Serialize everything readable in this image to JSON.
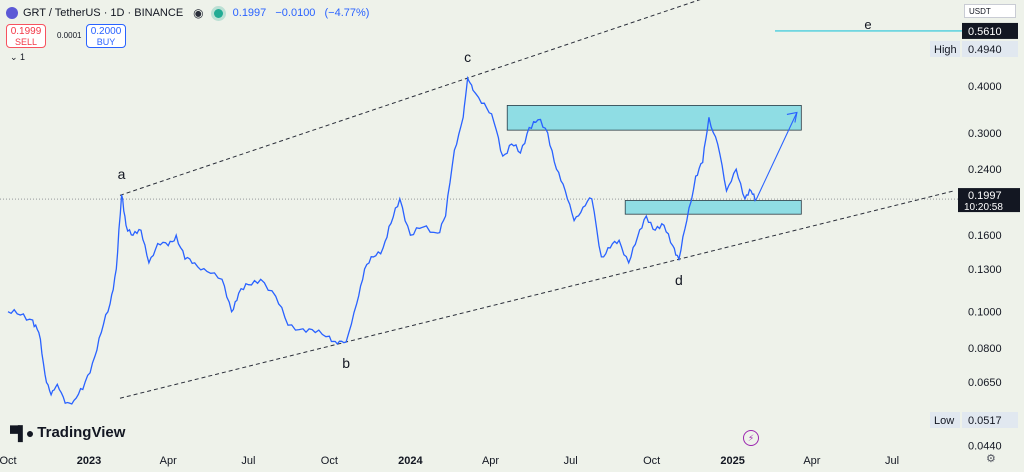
{
  "header": {
    "symbol": "GRT / TetherUS · 1D · BINANCE",
    "quote": {
      "last": "0.1997",
      "change": "−0.0100",
      "change_pct": "(−4.77%)"
    }
  },
  "trade": {
    "sell_price": "0.1999",
    "sell_label": "SELL",
    "spread": "0.0001",
    "buy_price": "0.2000",
    "buy_label": "BUY"
  },
  "indicator_toggle": "1",
  "currency": "USDT",
  "brand": "TradingView",
  "colors": {
    "line": "#2962ff",
    "zone_fill": "#8fdde4",
    "zone_edge": "#2a3b45",
    "e_line": "#26c6da",
    "price_tag": "#131722"
  },
  "chart_data": {
    "type": "line",
    "series": [
      {
        "name": "",
        "points": [
          [
            "2022-10-01",
            0.1
          ],
          [
            "2022-10-15",
            0.098
          ],
          [
            "2022-10-29",
            0.095
          ],
          [
            "2022-11-05",
            0.088
          ],
          [
            "2022-11-12",
            0.068
          ],
          [
            "2022-11-19",
            0.06
          ],
          [
            "2022-11-26",
            0.064
          ],
          [
            "2022-12-05",
            0.057
          ],
          [
            "2022-12-15",
            0.058
          ],
          [
            "2022-12-25",
            0.062
          ],
          [
            "2023-01-05",
            0.073
          ],
          [
            "2023-01-15",
            0.088
          ],
          [
            "2023-01-25",
            0.105
          ],
          [
            "2023-02-01",
            0.13
          ],
          [
            "2023-02-07",
            0.205
          ],
          [
            "2023-02-12",
            0.17
          ],
          [
            "2023-02-20",
            0.16
          ],
          [
            "2023-03-01",
            0.165
          ],
          [
            "2023-03-10",
            0.135
          ],
          [
            "2023-03-20",
            0.152
          ],
          [
            "2023-04-01",
            0.15
          ],
          [
            "2023-04-10",
            0.16
          ],
          [
            "2023-04-20",
            0.138
          ],
          [
            "2023-05-01",
            0.135
          ],
          [
            "2023-05-15",
            0.128
          ],
          [
            "2023-06-01",
            0.122
          ],
          [
            "2023-06-12",
            0.1
          ],
          [
            "2023-06-20",
            0.112
          ],
          [
            "2023-07-01",
            0.118
          ],
          [
            "2023-07-15",
            0.122
          ],
          [
            "2023-08-01",
            0.11
          ],
          [
            "2023-08-15",
            0.092
          ],
          [
            "2023-09-01",
            0.09
          ],
          [
            "2023-09-15",
            0.088
          ],
          [
            "2023-10-01",
            0.086
          ],
          [
            "2023-10-10",
            0.082
          ],
          [
            "2023-10-20",
            0.083
          ],
          [
            "2023-11-01",
            0.105
          ],
          [
            "2023-11-10",
            0.13
          ],
          [
            "2023-11-20",
            0.14
          ],
          [
            "2023-12-01",
            0.148
          ],
          [
            "2023-12-10",
            0.172
          ],
          [
            "2023-12-20",
            0.2
          ],
          [
            "2024-01-01",
            0.16
          ],
          [
            "2024-01-15",
            0.168
          ],
          [
            "2024-02-01",
            0.162
          ],
          [
            "2024-02-10",
            0.18
          ],
          [
            "2024-02-20",
            0.27
          ],
          [
            "2024-03-01",
            0.33
          ],
          [
            "2024-03-06",
            0.42
          ],
          [
            "2024-03-12",
            0.39
          ],
          [
            "2024-03-25",
            0.36
          ],
          [
            "2024-04-05",
            0.32
          ],
          [
            "2024-04-15",
            0.26
          ],
          [
            "2024-04-25",
            0.28
          ],
          [
            "2024-05-05",
            0.265
          ],
          [
            "2024-05-15",
            0.31
          ],
          [
            "2024-05-25",
            0.325
          ],
          [
            "2024-06-05",
            0.3
          ],
          [
            "2024-06-15",
            0.24
          ],
          [
            "2024-06-25",
            0.21
          ],
          [
            "2024-07-05",
            0.175
          ],
          [
            "2024-07-15",
            0.19
          ],
          [
            "2024-07-25",
            0.2
          ],
          [
            "2024-08-05",
            0.14
          ],
          [
            "2024-08-15",
            0.148
          ],
          [
            "2024-08-25",
            0.155
          ],
          [
            "2024-09-05",
            0.135
          ],
          [
            "2024-09-15",
            0.158
          ],
          [
            "2024-09-25",
            0.18
          ],
          [
            "2024-10-05",
            0.165
          ],
          [
            "2024-10-15",
            0.17
          ],
          [
            "2024-10-25",
            0.15
          ],
          [
            "2024-11-01",
            0.138
          ],
          [
            "2024-11-10",
            0.175
          ],
          [
            "2024-11-20",
            0.23
          ],
          [
            "2024-11-28",
            0.25
          ],
          [
            "2024-12-05",
            0.33
          ],
          [
            "2024-12-15",
            0.28
          ],
          [
            "2024-12-25",
            0.21
          ],
          [
            "2025-01-05",
            0.24
          ],
          [
            "2025-01-15",
            0.2
          ],
          [
            "2025-01-22",
            0.21
          ],
          [
            "2025-01-28",
            0.1997
          ]
        ]
      }
    ],
    "y_axis_ticks": [
      "0.4000",
      "0.3000",
      "0.2400",
      "0.1997",
      "0.1600",
      "0.1300",
      "0.1000",
      "0.0800",
      "0.0650",
      "0.0440"
    ],
    "y_scale": "log",
    "x_axis_ticks": [
      "Oct",
      "2023",
      "Apr",
      "Jul",
      "Oct",
      "2024",
      "Apr",
      "Jul",
      "Oct",
      "2025",
      "Apr",
      "Jul"
    ],
    "last_price": {
      "value": 0.1997,
      "label": "0.1997",
      "countdown": "10:20:58"
    },
    "high": {
      "label": "High",
      "value": "0.4940"
    },
    "low": {
      "label": "Low",
      "value": "0.0517"
    },
    "e_level": {
      "label": "e",
      "value": "0.5610"
    },
    "pivot_labels": [
      {
        "label": "a",
        "date": "2023-02-07",
        "value": 0.205
      },
      {
        "label": "b",
        "date": "2023-10-20",
        "value": 0.083
      },
      {
        "label": "c",
        "date": "2024-03-06",
        "value": 0.42
      },
      {
        "label": "d",
        "date": "2024-11-01",
        "value": 0.138
      }
    ],
    "zones": [
      {
        "from": "2024-04-20",
        "to": "2025-03-20",
        "low": 0.305,
        "high": 0.355
      },
      {
        "from": "2024-09-01",
        "to": "2025-03-20",
        "low": 0.182,
        "high": 0.198
      }
    ],
    "grid": false,
    "legend": "none"
  }
}
